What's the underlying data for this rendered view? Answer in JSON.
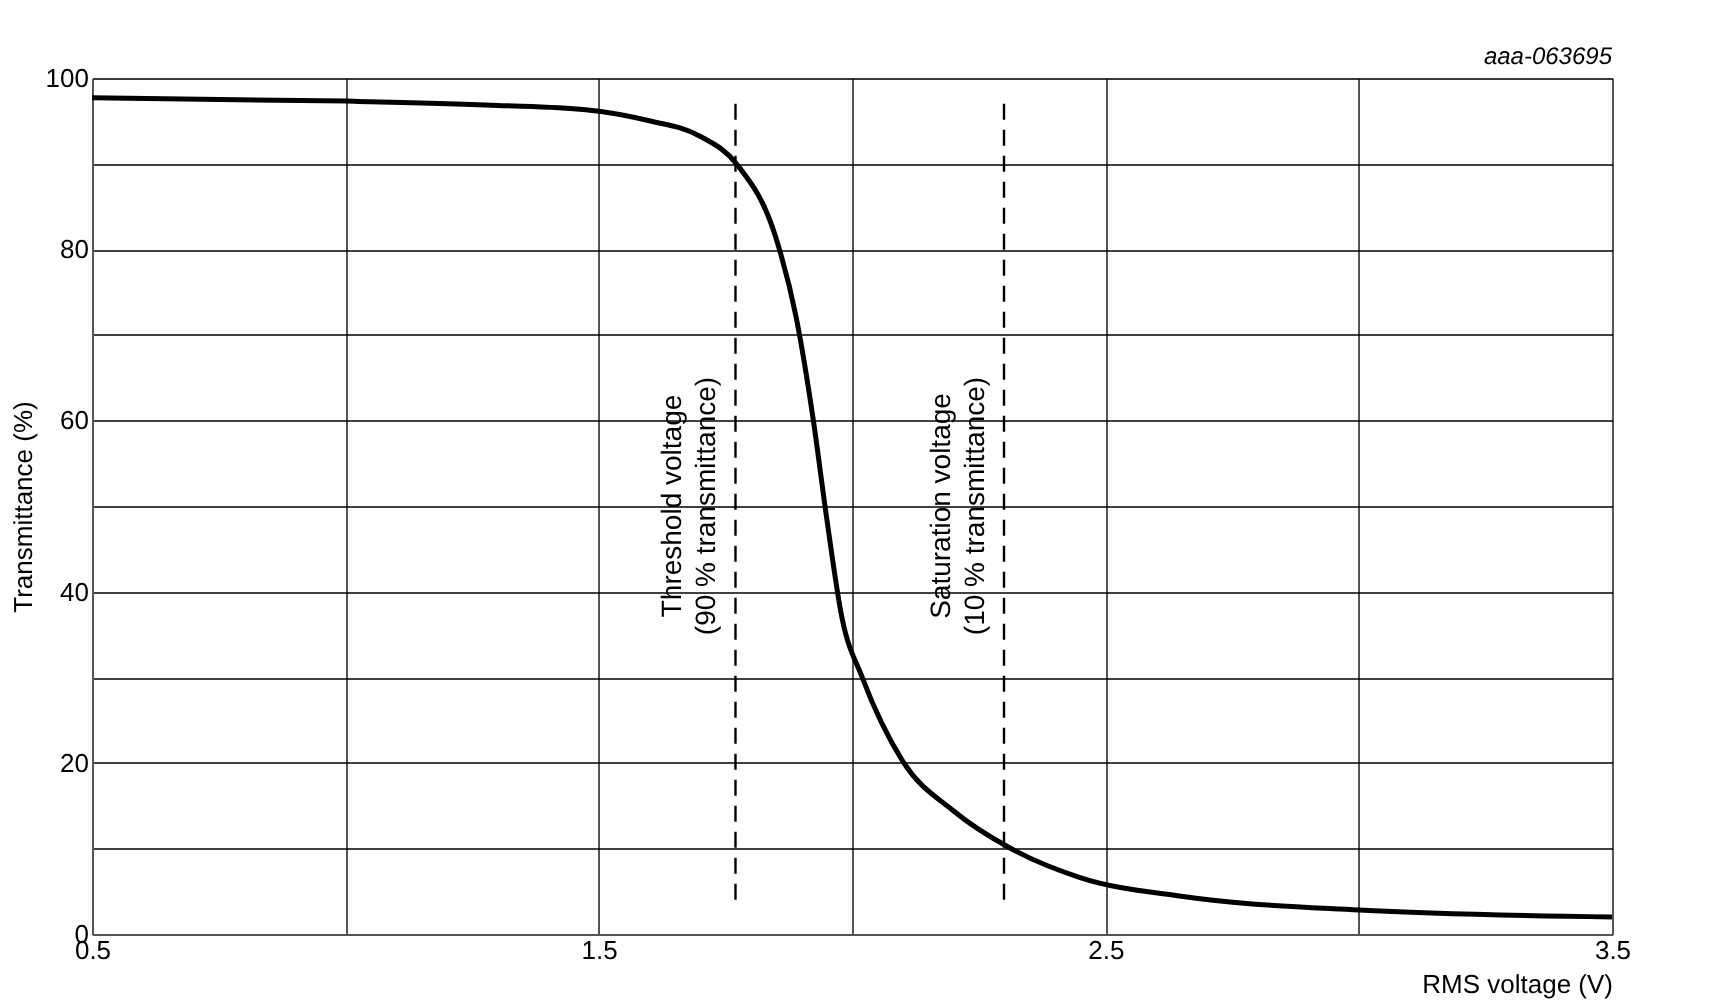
{
  "chart_data": {
    "type": "line",
    "xlabel": "RMS voltage (V)",
    "ylabel": "Transmittance (%)",
    "x": [
      0.5,
      1.0,
      1.3,
      1.474,
      1.6,
      1.7,
      1.773,
      1.85,
      1.89,
      1.923,
      1.95,
      1.98,
      2.02,
      2.1,
      2.2,
      2.31,
      2.45,
      2.65,
      3.0,
      3.5
    ],
    "series": [
      {
        "color": "#000000",
        "values": [
          97.7,
          97.3,
          96.8,
          96.3,
          95.0,
          93.2,
          89.9,
          81.3,
          72,
          60.3,
          48.6,
          37,
          30,
          20.2,
          14.4,
          10.1,
          6.6,
          4.4,
          2.8,
          2.0
        ]
      }
    ],
    "xlim": [
      0.5,
      3.5
    ],
    "ylim": [
      0,
      100
    ],
    "xticks": [
      0.5,
      {
        "value": 1.0,
        "label": null
      },
      1.5,
      {
        "value": 2.0,
        "label": null
      },
      2.5,
      {
        "value": 3.0,
        "label": null
      },
      3.5
    ],
    "yticks": [
      0,
      {
        "value": 10,
        "label": null
      },
      20,
      {
        "value": 30,
        "label": null
      },
      40,
      {
        "value": 50,
        "label": null
      },
      60,
      {
        "value": 70,
        "label": null
      },
      80,
      {
        "value": 90,
        "label": null
      },
      100
    ],
    "grid": true,
    "line_style": "solid",
    "marker": "none",
    "ref_lines": [
      {
        "axis": "x",
        "value": 1.77,
        "label": "Threshold voltage\n(90 % transmittance)",
        "line_style": "dashed",
        "color": "#000000"
      },
      {
        "axis": "x",
        "value": 2.3,
        "label": "Saturation voltage\n(10 % transmittance)",
        "line_style": "dashed",
        "color": "#000000"
      }
    ],
    "annotations": [
      "aaa-063695"
    ]
  }
}
